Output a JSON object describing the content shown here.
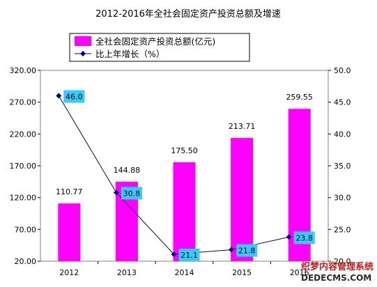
{
  "chart_data": {
    "type": "bar",
    "title": "2012-2016年全社会固定资产投资总额及增速",
    "categories": [
      "2012",
      "2013",
      "2014",
      "2015",
      "2016"
    ],
    "series": [
      {
        "name": "全社会固定资产投资总额(亿元)",
        "type": "bar",
        "axis": "left",
        "values": [
          110.77,
          144.88,
          175.5,
          213.71,
          259.55
        ],
        "labels": [
          "110.77",
          "144.88",
          "175.50",
          "213.71",
          "259.55"
        ],
        "color": "#ff00ff"
      },
      {
        "name": "比上年增长（%）",
        "type": "line",
        "axis": "right",
        "values": [
          46.0,
          30.8,
          21.1,
          21.8,
          23.8
        ],
        "labels": [
          "46.0",
          "30.8",
          "21.1",
          "21.8",
          "23.8"
        ],
        "color": "#000080",
        "label_bg": "#33ccff"
      }
    ],
    "y_left": {
      "ylim": [
        20,
        320
      ],
      "ticks": [
        "20.00",
        "70.00",
        "120.00",
        "170.00",
        "220.00",
        "270.00",
        "320.00"
      ]
    },
    "y_right": {
      "ylim": [
        20,
        50
      ],
      "ticks": [
        "20.0",
        "25.0",
        "30.0",
        "35.0",
        "40.0",
        "45.0",
        "50.0"
      ]
    },
    "xlabel": "",
    "ylabel": "",
    "grid": false,
    "legend": "top-left"
  },
  "watermark": {
    "line1": "织梦内容管理系统",
    "line2": "DEDECMS.COM"
  }
}
